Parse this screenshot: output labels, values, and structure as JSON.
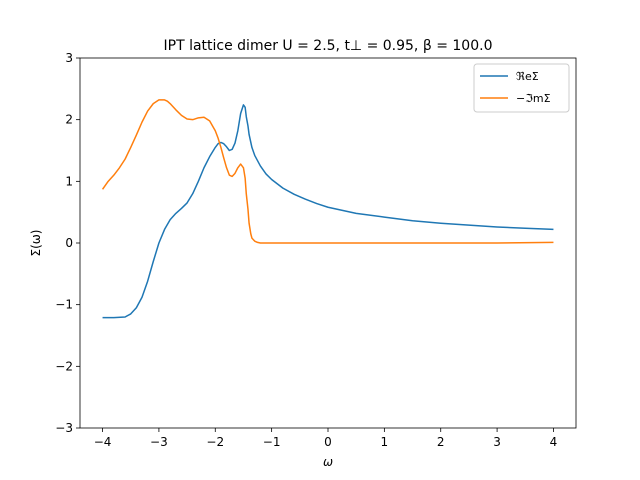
{
  "chart_data": {
    "type": "line",
    "title": "IPT lattice dimer U = 2.5, t⊥ = 0.95, β = 100.0",
    "xlabel": "ω",
    "ylabel": "Σ(ω)",
    "xlim": [
      -4.4,
      4.4
    ],
    "ylim": [
      -3,
      3
    ],
    "xticks": [
      -4,
      -3,
      -2,
      -1,
      0,
      1,
      2,
      3,
      4
    ],
    "yticks": [
      -3,
      -2,
      -1,
      0,
      1,
      2,
      3
    ],
    "xtick_labels": [
      "−4",
      "−3",
      "−2",
      "−1",
      "0",
      "1",
      "2",
      "3",
      "4"
    ],
    "ytick_labels": [
      "−3",
      "−2",
      "−1",
      "0",
      "1",
      "2",
      "3"
    ],
    "grid": false,
    "legend_position": "top-right",
    "series": [
      {
        "name": "ℜeΣ",
        "color": "#1f77b4",
        "x": [
          -4.0,
          -3.8,
          -3.6,
          -3.5,
          -3.4,
          -3.3,
          -3.2,
          -3.1,
          -3.0,
          -2.9,
          -2.8,
          -2.7,
          -2.6,
          -2.5,
          -2.4,
          -2.3,
          -2.2,
          -2.1,
          -2.0,
          -1.95,
          -1.9,
          -1.85,
          -1.8,
          -1.75,
          -1.7,
          -1.65,
          -1.6,
          -1.55,
          -1.5,
          -1.47,
          -1.45,
          -1.42,
          -1.4,
          -1.35,
          -1.3,
          -1.2,
          -1.1,
          -1.0,
          -0.8,
          -0.6,
          -0.4,
          -0.2,
          0.0,
          0.5,
          1.0,
          1.5,
          2.0,
          2.5,
          3.0,
          3.5,
          4.0
        ],
        "y": [
          -1.21,
          -1.21,
          -1.2,
          -1.15,
          -1.05,
          -0.88,
          -0.62,
          -0.3,
          0.0,
          0.22,
          0.38,
          0.48,
          0.56,
          0.65,
          0.8,
          1.0,
          1.22,
          1.4,
          1.55,
          1.61,
          1.63,
          1.61,
          1.56,
          1.5,
          1.52,
          1.62,
          1.82,
          2.1,
          2.24,
          2.2,
          2.05,
          1.9,
          1.76,
          1.55,
          1.42,
          1.25,
          1.12,
          1.03,
          0.89,
          0.79,
          0.71,
          0.64,
          0.58,
          0.48,
          0.42,
          0.36,
          0.32,
          0.29,
          0.26,
          0.24,
          0.22
        ]
      },
      {
        "name": "−ℑmΣ",
        "color": "#ff7f0e",
        "x": [
          -4.0,
          -3.9,
          -3.8,
          -3.7,
          -3.6,
          -3.5,
          -3.4,
          -3.3,
          -3.2,
          -3.1,
          -3.0,
          -2.9,
          -2.85,
          -2.8,
          -2.7,
          -2.6,
          -2.5,
          -2.4,
          -2.3,
          -2.2,
          -2.1,
          -2.0,
          -1.95,
          -1.9,
          -1.85,
          -1.8,
          -1.75,
          -1.7,
          -1.65,
          -1.6,
          -1.55,
          -1.5,
          -1.47,
          -1.45,
          -1.42,
          -1.4,
          -1.37,
          -1.35,
          -1.3,
          -1.25,
          -1.2,
          -1.1,
          -1.0,
          0.0,
          1.0,
          2.0,
          3.0,
          4.0
        ],
        "y": [
          0.87,
          1.0,
          1.1,
          1.22,
          1.36,
          1.55,
          1.75,
          1.96,
          2.14,
          2.26,
          2.32,
          2.32,
          2.3,
          2.26,
          2.16,
          2.07,
          2.01,
          2.0,
          2.03,
          2.04,
          1.98,
          1.82,
          1.7,
          1.55,
          1.38,
          1.22,
          1.1,
          1.08,
          1.13,
          1.22,
          1.28,
          1.22,
          1.05,
          0.8,
          0.55,
          0.32,
          0.15,
          0.08,
          0.03,
          0.01,
          0.0,
          0.0,
          0.0,
          0.0,
          0.0,
          0.0,
          0.0,
          0.01
        ]
      }
    ]
  }
}
